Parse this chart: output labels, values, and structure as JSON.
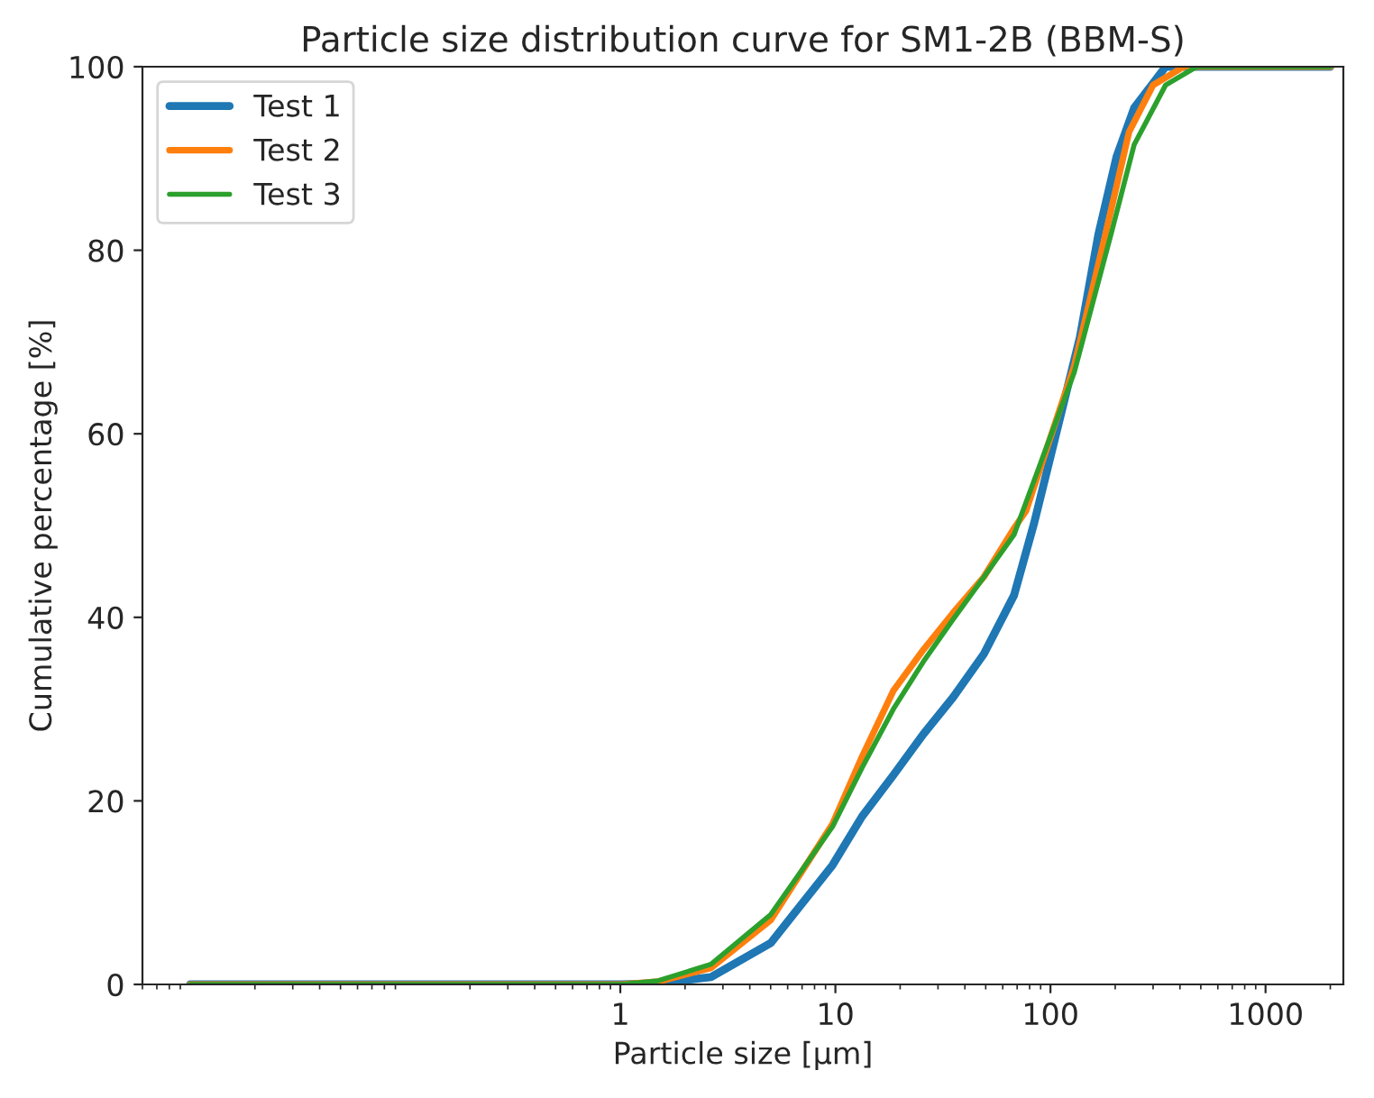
{
  "chart_data": {
    "type": "line",
    "title": "Particle size distribution curve for SM1-2B (BBM-S)",
    "xlabel": "Particle size [μm]",
    "ylabel": "Cumulative percentage [%]",
    "log": "x",
    "xlim": [
      0.006,
      2300
    ],
    "xticks": [
      1,
      10,
      100,
      1000
    ],
    "ylim": [
      0,
      100
    ],
    "yticks": [
      0,
      20,
      40,
      60,
      80,
      100
    ],
    "grid": false,
    "legend": "top left",
    "line_style": "solid",
    "marker": "none",
    "series": [
      {
        "name": "Test 1",
        "color": "#1f77b4",
        "x": [
          0.01,
          1.0,
          1.5,
          2.64,
          5.0,
          9.7,
          13.3,
          18.6,
          25.7,
          35.3,
          49,
          67.7,
          84,
          137,
          167,
          203,
          245,
          343,
          2000
        ],
        "values": [
          0,
          0,
          0.1,
          0.8,
          4.5,
          13,
          18.3,
          22.8,
          27.3,
          31.3,
          36,
          42.4,
          50.3,
          70.5,
          81.7,
          90.2,
          95.5,
          100,
          100
        ]
      },
      {
        "name": "Test 2",
        "color": "#ff7f0e",
        "x": [
          0.01,
          1.0,
          1.5,
          2.64,
          5.0,
          9.7,
          13.3,
          18.6,
          25.7,
          35.3,
          49,
          67.7,
          77,
          129,
          180,
          232,
          300,
          417,
          2000
        ],
        "values": [
          0,
          0,
          0.3,
          1.8,
          7,
          17.5,
          24.8,
          32,
          36.5,
          40.5,
          44.4,
          49.7,
          51.6,
          67.4,
          81.7,
          92.9,
          98,
          100,
          100
        ]
      },
      {
        "name": "Test 3",
        "color": "#2ca02c",
        "x": [
          0.01,
          1.0,
          1.5,
          2.64,
          5.0,
          9.7,
          13.3,
          18.6,
          25.7,
          35.3,
          49,
          67.7,
          72,
          129,
          191,
          245,
          343,
          478,
          2000
        ],
        "values": [
          0,
          0,
          0.4,
          2.2,
          7.6,
          17.2,
          23.6,
          30,
          35.2,
          39.8,
          44.4,
          49,
          50.7,
          66.7,
          81.7,
          91.5,
          98,
          100,
          100
        ]
      }
    ]
  }
}
